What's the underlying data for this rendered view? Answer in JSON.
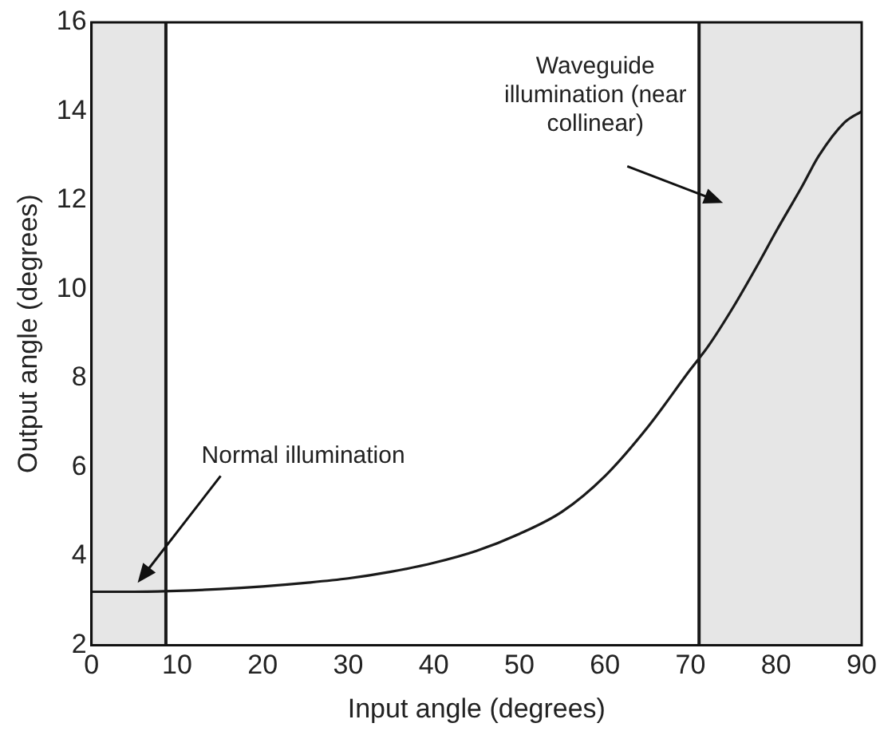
{
  "chart_data": {
    "type": "line",
    "xlabel": "Input angle (degrees)",
    "ylabel": "Output angle (degrees)",
    "x": [
      0,
      5,
      10,
      15,
      20,
      25,
      30,
      35,
      40,
      45,
      50,
      55,
      60,
      65,
      70,
      72,
      75,
      78,
      80,
      83,
      85,
      88,
      90
    ],
    "series": [
      {
        "color": "#1a1a1a",
        "values": [
          3.2,
          3.2,
          3.22,
          3.26,
          3.32,
          3.4,
          3.5,
          3.65,
          3.85,
          4.12,
          4.5,
          5.0,
          5.8,
          6.9,
          8.2,
          8.7,
          9.6,
          10.6,
          11.3,
          12.3,
          13.0,
          13.75,
          14.0
        ]
      }
    ],
    "xlim": [
      0,
      90
    ],
    "xticks": [
      0,
      10,
      20,
      30,
      40,
      50,
      60,
      70,
      80,
      90
    ],
    "ylim": [
      2,
      16
    ],
    "yticks": [
      2,
      4,
      6,
      8,
      10,
      12,
      14,
      16
    ],
    "grid": false,
    "legend": false,
    "marker": "none",
    "line_style": "solid",
    "bands": [
      {
        "axis": "x",
        "from": 0,
        "to": 8.7,
        "color": "#e6e6e6"
      },
      {
        "axis": "x",
        "from": 71,
        "to": 90,
        "color": "#e6e6e6"
      }
    ],
    "ref_lines": [
      {
        "axis": "x",
        "value": 8.7,
        "color": "#1a1a1a"
      },
      {
        "axis": "x",
        "value": 71,
        "color": "#1a1a1a"
      }
    ],
    "annotations": [
      "Normal illumination",
      "Waveguide illumination (near collinear)"
    ]
  }
}
